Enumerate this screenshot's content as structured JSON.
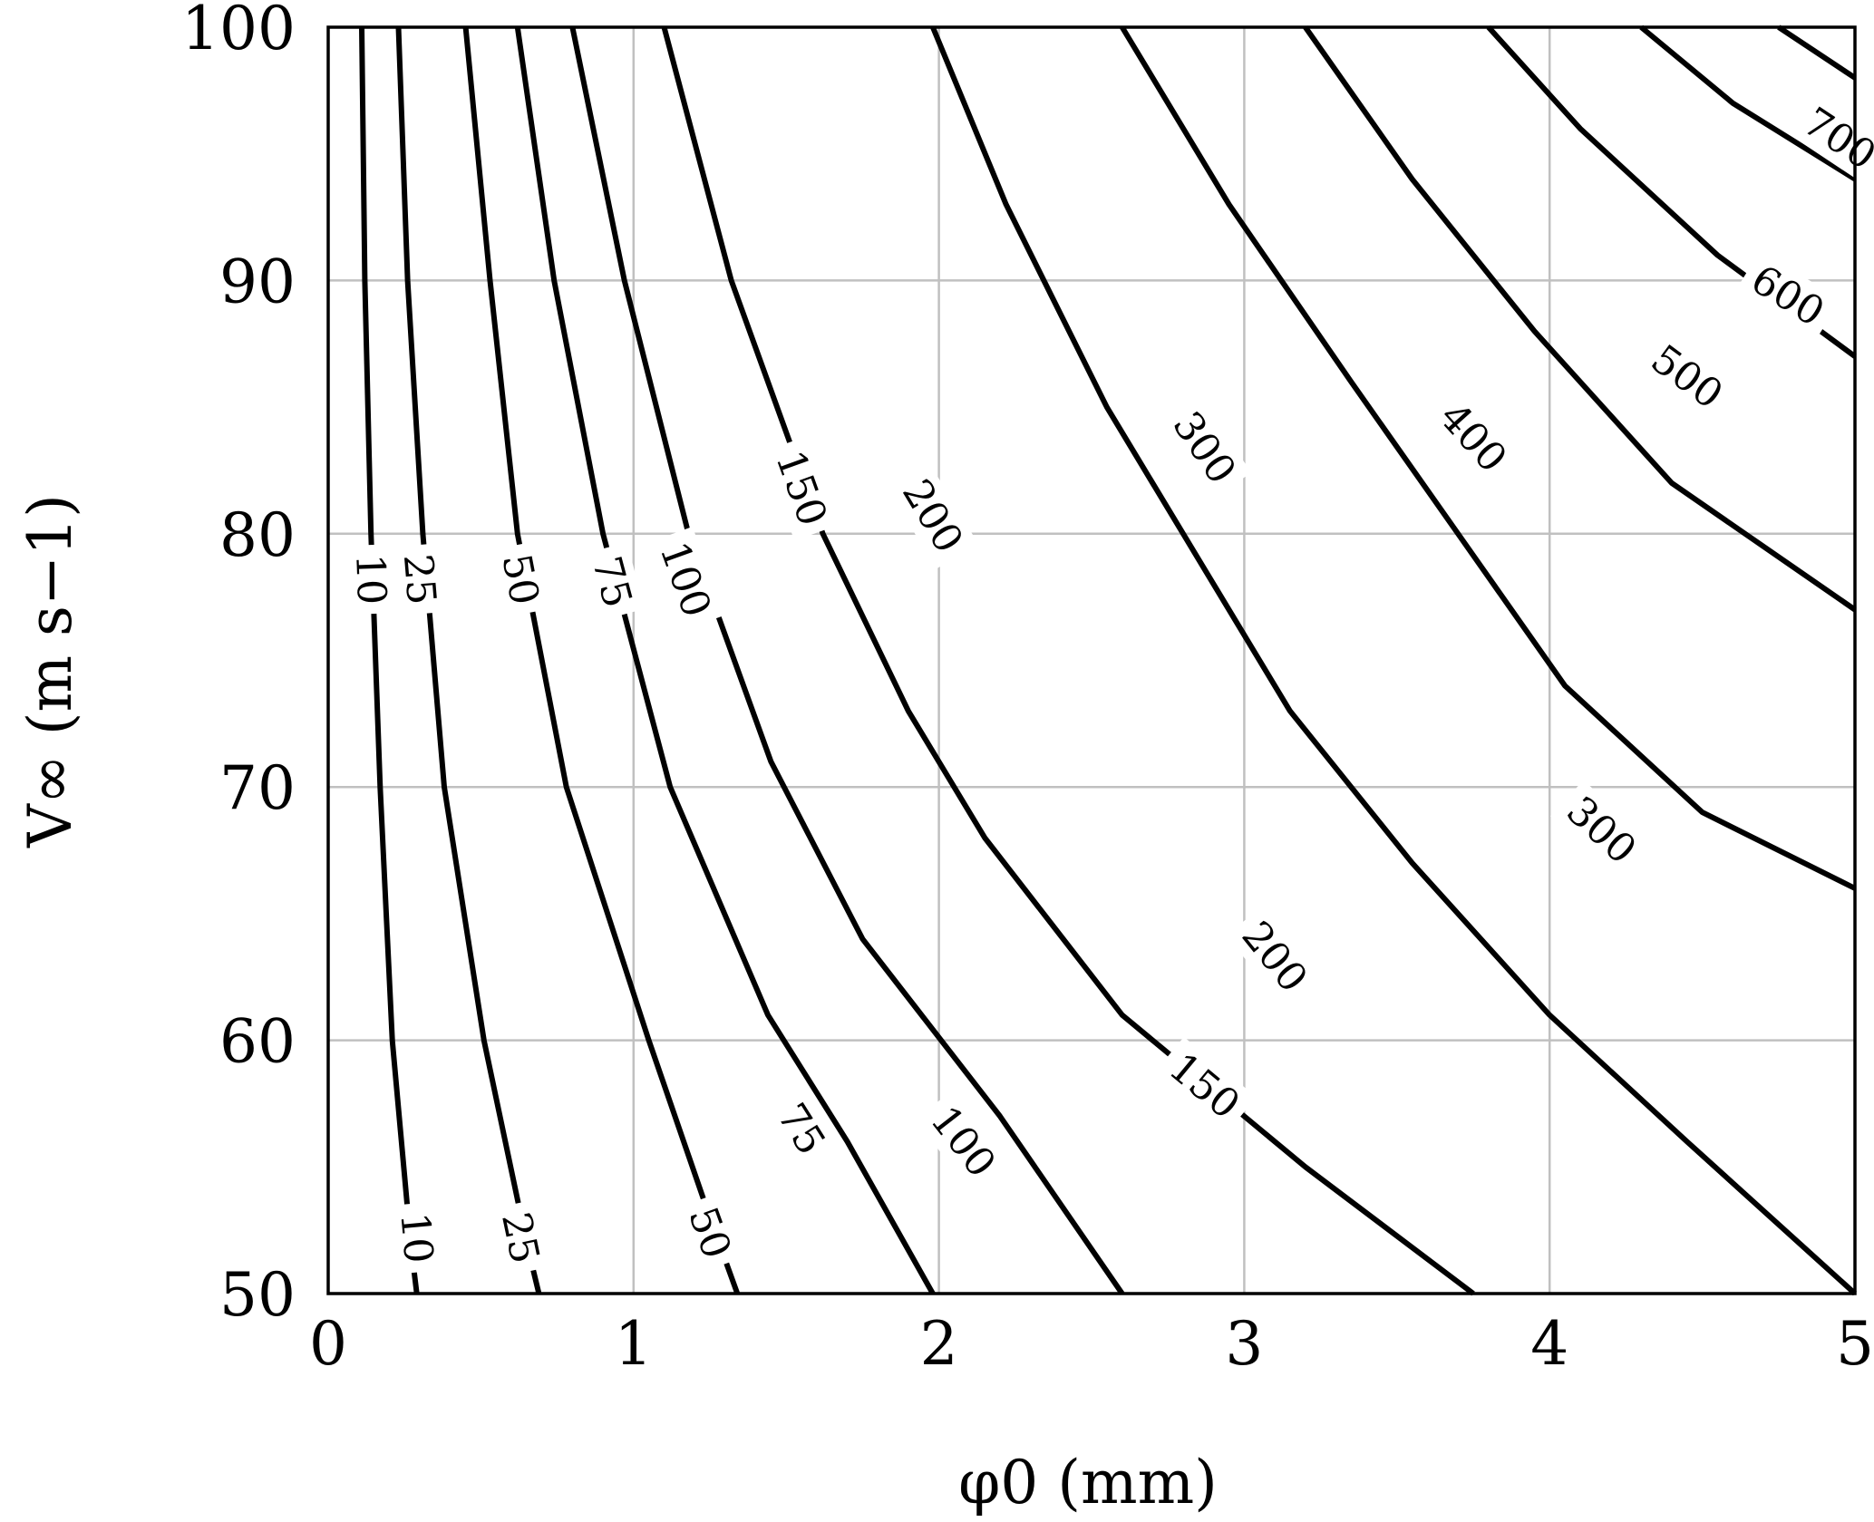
{
  "chart_data": {
    "type": "contour",
    "xlabel": "φ0 (mm)",
    "ylabel": "V∞ (m s−1)",
    "xlim": [
      0,
      5
    ],
    "ylim": [
      50,
      100
    ],
    "xticks": [
      "0",
      "1",
      "2",
      "3",
      "4",
      "5"
    ],
    "yticks": [
      "50",
      "60",
      "70",
      "80",
      "90",
      "100"
    ],
    "grid": true,
    "contours": [
      {
        "level": "10",
        "points": [
          [
            0.11,
            100
          ],
          [
            0.12,
            90
          ],
          [
            0.14,
            80
          ],
          [
            0.17,
            70
          ],
          [
            0.21,
            60
          ],
          [
            0.27,
            52
          ],
          [
            0.29,
            50
          ]
        ]
      },
      {
        "level": "25",
        "points": [
          [
            0.23,
            100
          ],
          [
            0.26,
            90
          ],
          [
            0.31,
            80
          ],
          [
            0.38,
            70
          ],
          [
            0.51,
            60
          ],
          [
            0.65,
            52
          ],
          [
            0.69,
            50
          ]
        ]
      },
      {
        "level": "50",
        "points": [
          [
            0.45,
            100
          ],
          [
            0.53,
            90
          ],
          [
            0.62,
            80
          ],
          [
            0.78,
            70
          ],
          [
            1.05,
            60
          ],
          [
            1.25,
            53
          ],
          [
            1.34,
            50
          ]
        ]
      },
      {
        "level": "75",
        "points": [
          [
            0.62,
            100
          ],
          [
            0.74,
            90
          ],
          [
            0.9,
            80
          ],
          [
            1.12,
            70
          ],
          [
            1.44,
            61
          ],
          [
            1.7,
            56
          ],
          [
            1.98,
            50
          ]
        ]
      },
      {
        "level": "100",
        "points": [
          [
            0.8,
            100
          ],
          [
            0.97,
            90
          ],
          [
            1.18,
            80
          ],
          [
            1.45,
            71
          ],
          [
            1.75,
            64
          ],
          [
            2.2,
            57
          ],
          [
            2.6,
            50
          ]
        ]
      },
      {
        "level": "150",
        "points": [
          [
            1.1,
            100
          ],
          [
            1.32,
            90
          ],
          [
            1.62,
            80
          ],
          [
            1.9,
            73
          ],
          [
            2.15,
            68
          ],
          [
            2.6,
            61
          ],
          [
            3.2,
            55
          ],
          [
            3.75,
            50
          ]
        ]
      },
      {
        "level": "200",
        "points": [
          [
            1.98,
            100
          ],
          [
            2.22,
            93
          ],
          [
            2.55,
            85
          ],
          [
            2.9,
            78
          ],
          [
            3.15,
            73
          ],
          [
            3.55,
            67
          ],
          [
            4.0,
            61
          ],
          [
            4.45,
            56
          ],
          [
            5.0,
            50
          ]
        ]
      },
      {
        "level": "300",
        "points": [
          [
            2.6,
            100
          ],
          [
            2.95,
            93
          ],
          [
            3.35,
            86
          ],
          [
            3.7,
            80
          ],
          [
            4.05,
            74
          ],
          [
            4.5,
            69
          ],
          [
            5.0,
            66
          ]
        ]
      },
      {
        "level": "400",
        "points": [
          [
            3.2,
            100
          ],
          [
            3.55,
            94
          ],
          [
            3.95,
            88
          ],
          [
            4.4,
            82
          ],
          [
            5.0,
            77
          ]
        ]
      },
      {
        "level": "500",
        "points": [
          [
            3.8,
            100
          ],
          [
            4.1,
            96
          ],
          [
            4.55,
            91
          ],
          [
            5.0,
            87
          ]
        ]
      },
      {
        "level": "600",
        "points": [
          [
            4.3,
            100
          ],
          [
            4.6,
            97
          ],
          [
            5.0,
            94
          ]
        ]
      },
      {
        "level": "700",
        "points": [
          [
            4.75,
            100
          ],
          [
            5.0,
            98
          ]
        ]
      }
    ],
    "contour_labels": [
      {
        "text": "10",
        "x": 0.14,
        "y": 78.2
      },
      {
        "text": "10",
        "x": 0.29,
        "y": 52.2
      },
      {
        "text": "25",
        "x": 0.3,
        "y": 78.2
      },
      {
        "text": "25",
        "x": 0.63,
        "y": 52.2
      },
      {
        "text": "50",
        "x": 0.63,
        "y": 78.2
      },
      {
        "text": "50",
        "x": 1.25,
        "y": 52.4
      },
      {
        "text": "75",
        "x": 0.93,
        "y": 78.1
      },
      {
        "text": "75",
        "x": 1.55,
        "y": 56.5
      },
      {
        "text": "100",
        "x": 1.17,
        "y": 78.2
      },
      {
        "text": "100",
        "x": 2.08,
        "y": 56.0
      },
      {
        "text": "150",
        "x": 1.55,
        "y": 81.8
      },
      {
        "text": "150",
        "x": 2.87,
        "y": 58.2
      },
      {
        "text": "200",
        "x": 1.98,
        "y": 80.7
      },
      {
        "text": "200",
        "x": 3.1,
        "y": 63.3
      },
      {
        "text": "300",
        "x": 2.87,
        "y": 83.4
      },
      {
        "text": "300",
        "x": 4.17,
        "y": 68.3
      },
      {
        "text": "400",
        "x": 3.75,
        "y": 83.8
      },
      {
        "text": "500",
        "x": 4.45,
        "y": 86.2
      },
      {
        "text": "600",
        "x": 4.78,
        "y": 89.4
      },
      {
        "text": "700",
        "x": 4.95,
        "y": 95.6
      }
    ]
  }
}
